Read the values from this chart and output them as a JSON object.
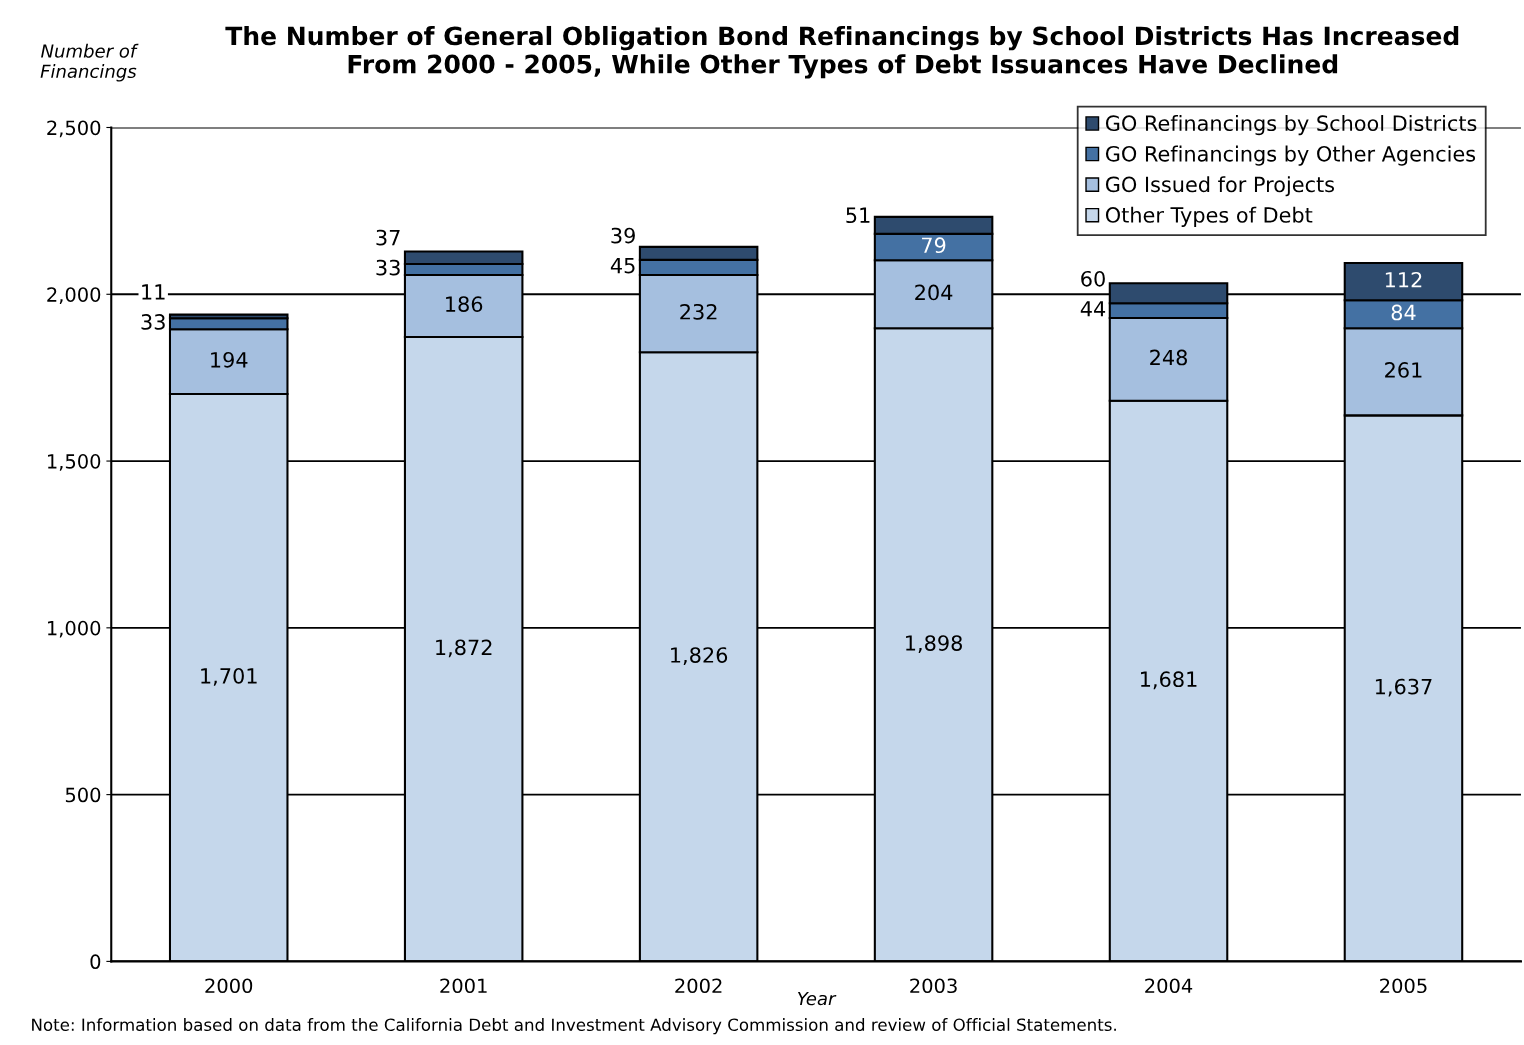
{
  "chart_data": {
    "type": "bar",
    "stacked": true,
    "title": "The Number of General Obligation Bond Refinancings by School Districts Has Increased\nFrom 2000 - 2005, While Other Types of Debt Issuances Have Declined",
    "ylabel": "Number of\nFinancings",
    "xlabel": "Year",
    "categories": [
      "2000",
      "2001",
      "2002",
      "2003",
      "2004",
      "2005"
    ],
    "series": [
      {
        "name": "Other Types of Debt",
        "color": "#c5d7eb",
        "values": [
          1701,
          1872,
          1826,
          1898,
          1681,
          1637
        ],
        "value_labels": [
          "1,701",
          "1,872",
          "1,826",
          "1,898",
          "1,681",
          "1,637"
        ]
      },
      {
        "name": "GO Issued for Projects",
        "color": "#a5bfdf",
        "values": [
          194,
          186,
          232,
          204,
          248,
          261
        ],
        "value_labels": [
          "194",
          "186",
          "232",
          "204",
          "248",
          "261"
        ]
      },
      {
        "name": "GO Refinancings by Other Agencies",
        "color": "#4471a3",
        "values": [
          33,
          33,
          45,
          79,
          44,
          84
        ],
        "value_labels": [
          "33",
          "33",
          "45",
          "79",
          "44",
          "84"
        ]
      },
      {
        "name": "GO Refinancings by School Districts",
        "color": "#2e4b6e",
        "values": [
          11,
          37,
          39,
          51,
          60,
          112
        ],
        "value_labels": [
          "11",
          "37",
          "39",
          "51",
          "60",
          "112"
        ]
      }
    ],
    "ylim": [
      0,
      2500
    ],
    "yticks": [
      {
        "value": 0,
        "label": "0"
      },
      {
        "value": 500,
        "label": "500"
      },
      {
        "value": 1000,
        "label": "1,000"
      },
      {
        "value": 1500,
        "label": "1,500"
      },
      {
        "value": 2000,
        "label": "2,000"
      },
      {
        "value": 2500,
        "label": "2,500"
      }
    ],
    "grid": "y",
    "legend": "top right",
    "annotations": [
      "Note: Information based on data from the California Debt and Investment Advisory Commission and review of Official Statements."
    ]
  }
}
